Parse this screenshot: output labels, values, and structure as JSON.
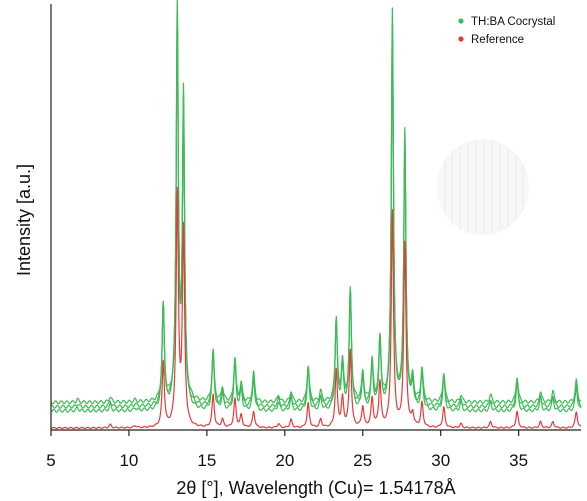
{
  "chart_data": {
    "type": "line",
    "xlabel": "2θ [°], Wavelength (Cu)= 1.54178Å",
    "ylabel": "Intensity [a.u.]",
    "xlim": [
      5,
      39
    ],
    "x_ticks": [
      5,
      10,
      15,
      20,
      25,
      30,
      35
    ],
    "ylim": [
      0,
      100
    ],
    "y_ticks_shown": false,
    "grid": false,
    "legend_position": "top-right",
    "series": [
      {
        "name": "TH:BA Cocrystal",
        "color": "#3dbb56",
        "traces": [
          {
            "baseline": 4.2,
            "scale": 1.0
          },
          {
            "baseline": 5.2,
            "scale": 0.95
          },
          {
            "baseline": 6.3,
            "scale": 0.9
          }
        ],
        "peaks": [
          {
            "x": 6.7,
            "h": 0.8
          },
          {
            "x": 8.8,
            "h": 1.5
          },
          {
            "x": 10.4,
            "h": 0.6
          },
          {
            "x": 12.2,
            "h": 26
          },
          {
            "x": 13.1,
            "h": 98
          },
          {
            "x": 13.5,
            "h": 76
          },
          {
            "x": 15.4,
            "h": 14
          },
          {
            "x": 16.0,
            "h": 4
          },
          {
            "x": 16.8,
            "h": 12
          },
          {
            "x": 17.2,
            "h": 5
          },
          {
            "x": 18.0,
            "h": 8
          },
          {
            "x": 19.6,
            "h": 2
          },
          {
            "x": 20.4,
            "h": 3
          },
          {
            "x": 21.5,
            "h": 10
          },
          {
            "x": 22.3,
            "h": 3
          },
          {
            "x": 23.3,
            "h": 22
          },
          {
            "x": 23.7,
            "h": 11
          },
          {
            "x": 24.2,
            "h": 30
          },
          {
            "x": 25.0,
            "h": 8
          },
          {
            "x": 25.6,
            "h": 11
          },
          {
            "x": 26.1,
            "h": 17
          },
          {
            "x": 26.9,
            "h": 98
          },
          {
            "x": 27.7,
            "h": 68
          },
          {
            "x": 28.2,
            "h": 6
          },
          {
            "x": 28.8,
            "h": 9
          },
          {
            "x": 30.2,
            "h": 8
          },
          {
            "x": 31.3,
            "h": 2
          },
          {
            "x": 33.2,
            "h": 2
          },
          {
            "x": 34.9,
            "h": 7
          },
          {
            "x": 36.4,
            "h": 3
          },
          {
            "x": 37.2,
            "h": 3
          },
          {
            "x": 38.7,
            "h": 6
          }
        ]
      },
      {
        "name": "Reference",
        "color": "#e8393a",
        "traces": [
          {
            "baseline": 0,
            "scale": 1.0
          }
        ],
        "peaks": [
          {
            "x": 8.8,
            "h": 0.8
          },
          {
            "x": 10.4,
            "h": 0.5
          },
          {
            "x": 12.2,
            "h": 16
          },
          {
            "x": 13.1,
            "h": 57
          },
          {
            "x": 13.5,
            "h": 48
          },
          {
            "x": 15.4,
            "h": 8
          },
          {
            "x": 16.0,
            "h": 2
          },
          {
            "x": 16.8,
            "h": 7
          },
          {
            "x": 17.2,
            "h": 3
          },
          {
            "x": 18.0,
            "h": 4
          },
          {
            "x": 19.6,
            "h": 1
          },
          {
            "x": 20.4,
            "h": 2
          },
          {
            "x": 21.5,
            "h": 6
          },
          {
            "x": 22.3,
            "h": 2
          },
          {
            "x": 23.3,
            "h": 14
          },
          {
            "x": 23.7,
            "h": 7
          },
          {
            "x": 24.2,
            "h": 19
          },
          {
            "x": 25.0,
            "h": 5
          },
          {
            "x": 25.6,
            "h": 7
          },
          {
            "x": 26.1,
            "h": 11
          },
          {
            "x": 26.9,
            "h": 53
          },
          {
            "x": 27.7,
            "h": 45
          },
          {
            "x": 28.2,
            "h": 3
          },
          {
            "x": 28.8,
            "h": 6
          },
          {
            "x": 30.2,
            "h": 5
          },
          {
            "x": 31.3,
            "h": 1
          },
          {
            "x": 33.2,
            "h": 1.5
          },
          {
            "x": 34.9,
            "h": 4
          },
          {
            "x": 36.4,
            "h": 1.5
          },
          {
            "x": 37.2,
            "h": 1.5
          },
          {
            "x": 38.7,
            "h": 4
          }
        ]
      }
    ]
  }
}
